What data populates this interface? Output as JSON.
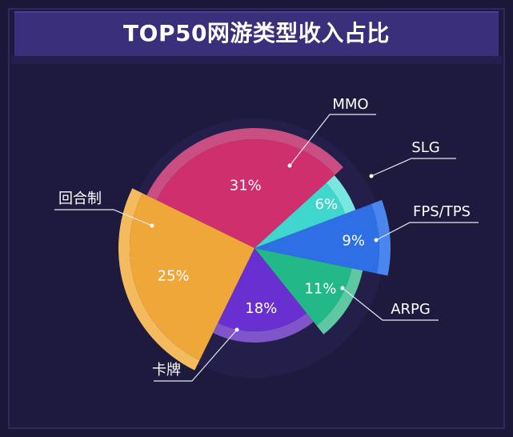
{
  "title": "TOP50网游类型收入占比",
  "chart_data": {
    "type": "pie",
    "title": "TOP50网游类型收入占比",
    "slices": [
      {
        "name": "MMO",
        "value": 31,
        "label": "31%",
        "color": "#d02f6e",
        "edge": "#c94e82"
      },
      {
        "name": "SLG",
        "value": 6,
        "label": "6%",
        "color": "#3ed6cd",
        "edge": "#7ae7df"
      },
      {
        "name": "FPS/TPS",
        "value": 9,
        "label": "9%",
        "color": "#2f6fe6",
        "edge": "#4b86ee"
      },
      {
        "name": "ARPG",
        "value": 11,
        "label": "11%",
        "color": "#23b887",
        "edge": "#5cc9a3"
      },
      {
        "name": "卡牌",
        "value": 18,
        "label": "18%",
        "color": "#6a2fd0",
        "edge": "#7f55c9"
      },
      {
        "name": "回合制",
        "value": 25,
        "label": "25%",
        "color": "#f0a73a",
        "edge": "#f4bb5e"
      }
    ]
  }
}
